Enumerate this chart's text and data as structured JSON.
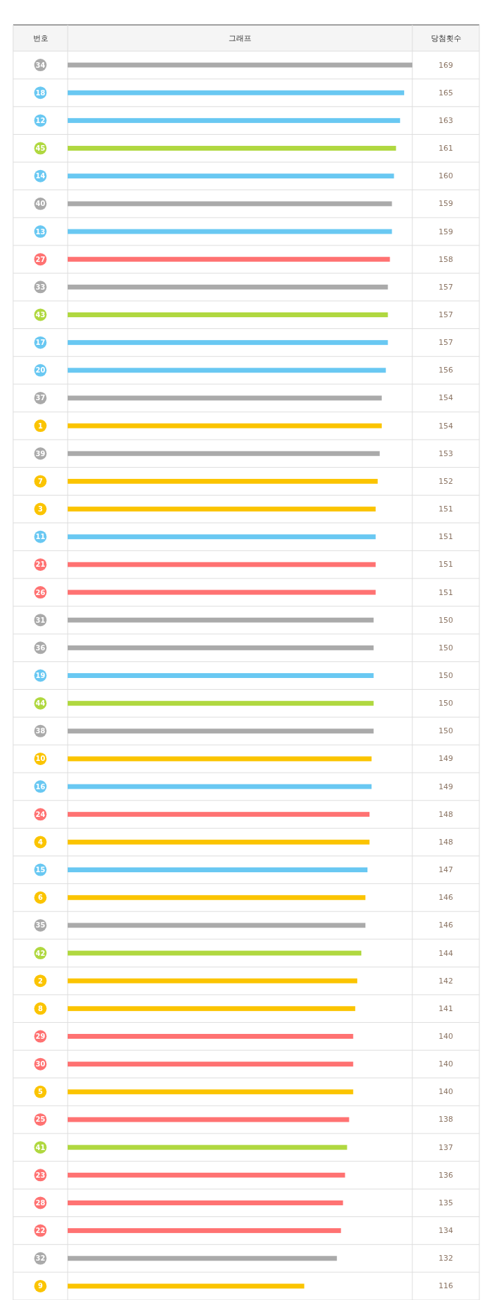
{
  "chart_data": {
    "type": "bar",
    "orientation": "horizontal",
    "ylabel": "번호",
    "xlabel": "그래프",
    "annotations": [
      "당첨횟수"
    ],
    "data_labels": true,
    "categories": [
      "34",
      "18",
      "12",
      "45",
      "14",
      "40",
      "13",
      "27",
      "33",
      "43",
      "17",
      "20",
      "37",
      "1",
      "39",
      "7",
      "3",
      "11",
      "21",
      "26",
      "31",
      "36",
      "19",
      "44",
      "38",
      "10",
      "16",
      "24",
      "4",
      "15",
      "6",
      "35",
      "42",
      "2",
      "8",
      "29",
      "30",
      "5",
      "25",
      "41",
      "23",
      "28",
      "22",
      "32",
      "9"
    ],
    "values": [
      169,
      165,
      163,
      161,
      160,
      159,
      159,
      158,
      157,
      157,
      157,
      156,
      154,
      154,
      153,
      152,
      151,
      151,
      151,
      151,
      150,
      150,
      150,
      150,
      150,
      149,
      149,
      148,
      148,
      147,
      146,
      146,
      144,
      142,
      141,
      140,
      140,
      140,
      138,
      137,
      136,
      135,
      134,
      132,
      116
    ],
    "colors": [
      "#aaaaaa",
      "#69c8f2",
      "#69c8f2",
      "#b0d840",
      "#69c8f2",
      "#aaaaaa",
      "#69c8f2",
      "#ff7272",
      "#aaaaaa",
      "#b0d840",
      "#69c8f2",
      "#69c8f2",
      "#aaaaaa",
      "#fbc400",
      "#aaaaaa",
      "#fbc400",
      "#fbc400",
      "#69c8f2",
      "#ff7272",
      "#ff7272",
      "#aaaaaa",
      "#aaaaaa",
      "#69c8f2",
      "#b0d840",
      "#aaaaaa",
      "#fbc400",
      "#69c8f2",
      "#ff7272",
      "#fbc400",
      "#69c8f2",
      "#fbc400",
      "#aaaaaa",
      "#b0d840",
      "#fbc400",
      "#fbc400",
      "#ff7272",
      "#ff7272",
      "#fbc400",
      "#ff7272",
      "#b0d840",
      "#ff7272",
      "#ff7272",
      "#ff7272",
      "#aaaaaa",
      "#fbc400"
    ]
  }
}
